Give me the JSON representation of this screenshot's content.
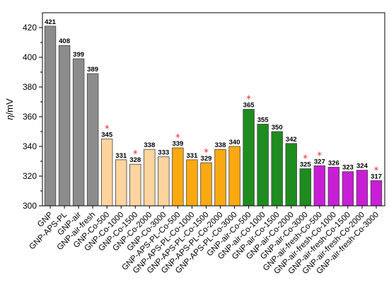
{
  "chart_data": {
    "type": "bar",
    "title": "",
    "xlabel": "",
    "ylabel": "η/mV",
    "ylim": [
      300,
      430
    ],
    "yticks": [
      300,
      320,
      340,
      360,
      380,
      400,
      420
    ],
    "grid": false,
    "legend": "none",
    "star_color": "#e8202a",
    "categories": [
      "GNP",
      "GNP-APS-PL",
      "GNP-air",
      "GNP-air-fresh",
      "GNP-Co-500",
      "GNP-Co-1000",
      "GNP-Co-1500",
      "GNP-Co-2000",
      "GNP-Co-3000",
      "GNP-APS-PL-Co-500",
      "GNP-APS-PL-Co-1000",
      "GNP-APS-PL-Co-1500",
      "GNP-APS-PL-Co-2000",
      "GNP-APS-PL-Co-3000",
      "GNP-air-Co-500",
      "GNP-air-Co-1000",
      "GNP-air-Co-1500",
      "GNP-air-Co-2000",
      "GNP-air-Co-3000",
      "GNP-air-fresh-Co-500",
      "GNP-air-fresh-Co-1000",
      "GNP-air-fresh-Co-1500",
      "GNP-air-fresh-Co-2000",
      "GNP-air-fresh-Co-3000"
    ],
    "values": [
      421,
      408,
      399,
      389,
      345,
      331,
      328,
      338,
      333,
      339,
      331,
      329,
      338,
      340,
      365,
      355,
      350,
      342,
      325,
      327,
      326,
      323,
      324,
      317
    ],
    "data_labels": [
      "421",
      "408",
      "399",
      "389",
      "345",
      "331",
      "328",
      "338",
      "333",
      "339",
      "331",
      "329",
      "338",
      "340",
      "365",
      "355",
      "350",
      "342",
      "325",
      "327",
      "326",
      "323",
      "324",
      "317"
    ],
    "colors": [
      "#8c8c8c",
      "#8c8c8c",
      "#8c8c8c",
      "#8c8c8c",
      "#fdd49e",
      "#fdd49e",
      "#fdd49e",
      "#fdd49e",
      "#fdd49e",
      "#fba910",
      "#fba910",
      "#fba910",
      "#fba910",
      "#fba910",
      "#1e8c1e",
      "#1e8c1e",
      "#1e8c1e",
      "#1e8c1e",
      "#1e8c1e",
      "#c81ed6",
      "#c81ed6",
      "#c81ed6",
      "#c81ed6",
      "#c81ed6"
    ],
    "starred": [
      false,
      false,
      false,
      false,
      true,
      false,
      true,
      false,
      false,
      true,
      false,
      true,
      false,
      false,
      true,
      false,
      false,
      false,
      true,
      true,
      false,
      false,
      false,
      true
    ],
    "star_symbol": "*"
  }
}
